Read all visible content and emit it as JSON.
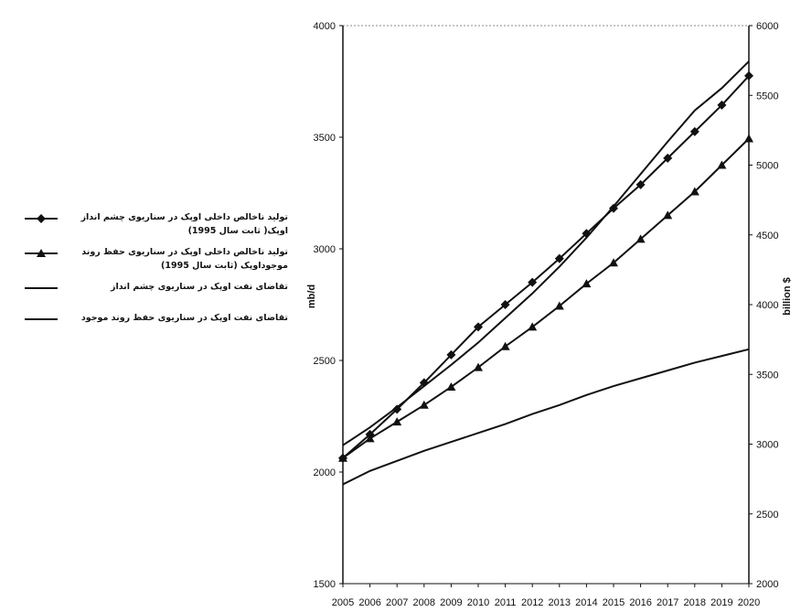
{
  "chart_data": {
    "type": "line",
    "categories": [
      "2005",
      "2006",
      "2007",
      "2008",
      "2009",
      "2010",
      "2011",
      "2012",
      "2013",
      "2014",
      "2015",
      "2016",
      "2017",
      "2018",
      "2019",
      "2020"
    ],
    "ylabel_left": "mb/d",
    "ylabel_right": "billion $",
    "ylim_left": [
      1500,
      4000
    ],
    "ylim_right": [
      2000,
      6000
    ],
    "yticks_left": [
      1500,
      2000,
      2500,
      3000,
      3500,
      4000
    ],
    "yticks_right": [
      2000,
      2500,
      3000,
      3500,
      4000,
      4500,
      5000,
      5500,
      6000
    ],
    "grid": false,
    "legend_position": "left",
    "series": [
      {
        "name": "تولید ناخالص داخلی اوپک در سناریوی چشم انداز اوپک( ثابت سال 1995)",
        "axis": "right",
        "marker": "diamond",
        "values": [
          2900,
          3070,
          3250,
          3440,
          3640,
          3840,
          4000,
          4160,
          4330,
          4510,
          4690,
          4860,
          5050,
          5240,
          5430,
          5640
        ]
      },
      {
        "name": "تولید ناخالص داخلی اوپک در سناریوی حفظ روند موجوداوپک (ثابت سال 1995)",
        "axis": "right",
        "marker": "triangle",
        "values": [
          2900,
          3040,
          3160,
          3280,
          3410,
          3550,
          3700,
          3840,
          3990,
          4150,
          4300,
          4470,
          4640,
          4810,
          5000,
          5190
        ]
      },
      {
        "name": "تقاضای نفت اوپک در سناریوی چشم انداز",
        "axis": "left",
        "marker": "none",
        "values": [
          2120,
          2200,
          2290,
          2385,
          2480,
          2580,
          2690,
          2800,
          2920,
          3050,
          3190,
          3335,
          3480,
          3620,
          3720,
          3840
        ]
      },
      {
        "name": "تقاضای نفت اوپک در سناریوی حفظ روند موجود",
        "axis": "left",
        "marker": "none",
        "values": [
          1945,
          2005,
          2050,
          2095,
          2135,
          2175,
          2215,
          2260,
          2300,
          2345,
          2385,
          2420,
          2455,
          2490,
          2520,
          2550
        ]
      }
    ]
  }
}
